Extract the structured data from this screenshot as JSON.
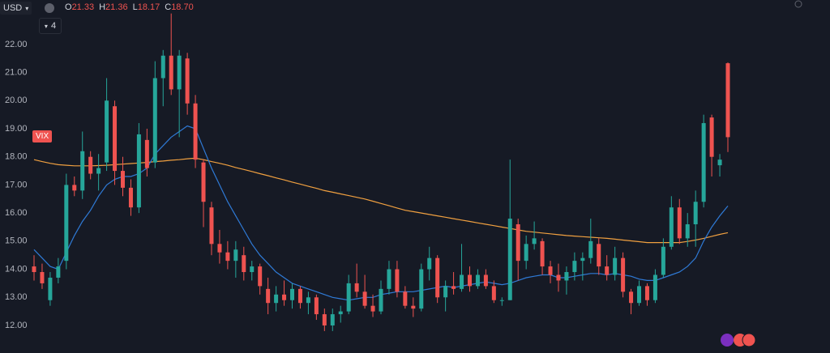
{
  "header": {
    "currency": "USD",
    "ohlc": [
      {
        "key": "O",
        "value": "21.33"
      },
      {
        "key": "H",
        "value": "21.36"
      },
      {
        "key": "L",
        "value": "18.17"
      },
      {
        "key": "C",
        "value": "18.70"
      }
    ],
    "indicator_count": "4",
    "symbol_tag": "VIX"
  },
  "chart_data": {
    "type": "candlestick",
    "up_color": "#26a69a",
    "down_color": "#ef5350",
    "ylim": [
      11.02,
      23.58
    ],
    "yticks": [
      {
        "value": 12,
        "label": "12.00"
      },
      {
        "value": 13,
        "label": "13.00"
      },
      {
        "value": 14,
        "label": "14.00"
      },
      {
        "value": 15,
        "label": "15.00"
      },
      {
        "value": 16,
        "label": "16.00"
      },
      {
        "value": 17,
        "label": "17.00"
      },
      {
        "value": 18,
        "label": "18.00"
      },
      {
        "value": 19,
        "label": "19.00"
      },
      {
        "value": 20,
        "label": "20.00"
      },
      {
        "value": 21,
        "label": "21.00"
      },
      {
        "value": 22,
        "label": "22.00"
      }
    ],
    "grid": false,
    "open": [
      14.1,
      13.9,
      12.9,
      13.7,
      14.3,
      17.0,
      16.8,
      18.0,
      17.4,
      17.8,
      19.8,
      17.5,
      16.9,
      16.2,
      18.6,
      17.8,
      20.8,
      21.6,
      20.4,
      21.5,
      19.9,
      17.8,
      16.2,
      14.9,
      14.6,
      14.3,
      14.5,
      13.9,
      14.1,
      13.3,
      12.8,
      13.1,
      12.9,
      13.3,
      12.8,
      13.0,
      12.4,
      12.0,
      12.4,
      12.5,
      13.5,
      13.2,
      12.7,
      12.5,
      13.3,
      14.0,
      13.2,
      12.7,
      12.6,
      14.0,
      14.4,
      13.0,
      13.4,
      13.3,
      13.8,
      13.4,
      13.8,
      13.4,
      12.9,
      12.9,
      15.6,
      14.3,
      14.9,
      15.0,
      14.1,
      13.8,
      13.6,
      13.9,
      14.3,
      14.4,
      14.9,
      14.1,
      13.8,
      14.4,
      13.2,
      12.8,
      13.4,
      12.9,
      13.8,
      14.8,
      16.2,
      15.1,
      15.6,
      16.4,
      19.4,
      17.7,
      21.33
    ],
    "high": [
      14.5,
      14.2,
      13.9,
      14.4,
      17.4,
      17.3,
      18.9,
      18.2,
      18.1,
      20.8,
      20.0,
      18.0,
      17.2,
      19.2,
      19.0,
      21.4,
      21.8,
      23.1,
      21.8,
      21.7,
      20.2,
      17.9,
      16.4,
      15.4,
      15.0,
      15.0,
      14.8,
      14.3,
      14.2,
      13.7,
      13.4,
      13.6,
      13.5,
      13.4,
      13.2,
      13.1,
      12.6,
      12.6,
      12.7,
      13.8,
      14.2,
      13.8,
      13.1,
      13.6,
      14.3,
      14.3,
      13.4,
      13.0,
      14.2,
      14.8,
      14.5,
      13.6,
      13.9,
      14.9,
      14.1,
      14.0,
      14.0,
      13.6,
      13.0,
      17.9,
      15.8,
      15.2,
      15.7,
      15.1,
      14.3,
      14.2,
      14.1,
      14.6,
      14.6,
      15.8,
      15.1,
      14.5,
      14.8,
      14.6,
      13.3,
      13.6,
      13.5,
      14.0,
      15.1,
      16.6,
      16.5,
      16.0,
      16.8,
      19.5,
      19.5,
      18.1,
      21.36
    ],
    "low": [
      13.6,
      13.3,
      12.7,
      13.5,
      14.0,
      16.6,
      16.5,
      17.2,
      16.8,
      17.5,
      17.0,
      16.6,
      15.9,
      16.0,
      17.3,
      17.6,
      19.8,
      20.2,
      18.7,
      19.5,
      17.6,
      15.5,
      14.5,
      14.2,
      14.0,
      13.7,
      13.6,
      13.6,
      13.1,
      12.4,
      12.5,
      12.7,
      12.6,
      12.6,
      12.4,
      12.2,
      11.8,
      11.8,
      12.1,
      12.4,
      13.0,
      12.6,
      12.3,
      12.4,
      13.1,
      13.0,
      12.6,
      12.3,
      12.5,
      13.6,
      12.8,
      12.5,
      13.1,
      13.2,
      13.2,
      13.3,
      13.3,
      12.8,
      12.7,
      12.9,
      13.6,
      14.0,
      14.7,
      13.8,
      13.5,
      13.2,
      13.1,
      13.6,
      13.6,
      14.2,
      13.8,
      13.6,
      13.6,
      13.0,
      12.4,
      12.7,
      12.7,
      12.8,
      13.7,
      14.7,
      14.9,
      14.8,
      14.8,
      16.2,
      17.3,
      17.3,
      18.17
    ],
    "close": [
      13.9,
      13.5,
      13.7,
      14.1,
      17.0,
      16.8,
      18.2,
      17.4,
      17.6,
      20.0,
      17.5,
      16.9,
      16.2,
      18.8,
      17.6,
      20.8,
      21.6,
      20.4,
      21.6,
      19.9,
      17.9,
      16.4,
      14.9,
      14.6,
      14.3,
      14.7,
      13.9,
      14.1,
      13.4,
      12.8,
      13.1,
      12.9,
      13.3,
      12.8,
      13.0,
      12.4,
      12.0,
      12.4,
      12.5,
      13.5,
      13.2,
      12.7,
      12.5,
      13.3,
      14.0,
      13.2,
      12.7,
      12.6,
      14.0,
      14.4,
      13.0,
      13.4,
      13.3,
      13.8,
      13.4,
      13.8,
      13.4,
      12.9,
      12.9,
      15.8,
      14.3,
      14.9,
      15.1,
      14.1,
      13.8,
      13.6,
      13.9,
      14.3,
      14.4,
      15.0,
      14.1,
      13.8,
      14.4,
      13.2,
      12.8,
      13.4,
      12.9,
      13.8,
      14.8,
      16.2,
      15.1,
      15.6,
      16.4,
      19.2,
      18.0,
      17.9,
      18.7
    ],
    "moving_averages": [
      {
        "color": "#2f7ad6",
        "values": [
          14.7,
          14.4,
          14.1,
          14.0,
          14.6,
          15.2,
          15.7,
          16.1,
          16.6,
          17.0,
          17.2,
          17.3,
          17.3,
          17.4,
          17.6,
          18.1,
          18.4,
          18.7,
          18.9,
          19.1,
          19.0,
          18.3,
          17.6,
          17.0,
          16.4,
          15.9,
          15.4,
          14.9,
          14.5,
          14.2,
          13.9,
          13.7,
          13.5,
          13.4,
          13.3,
          13.2,
          13.1,
          13.0,
          12.95,
          12.9,
          12.95,
          13.0,
          13.0,
          13.1,
          13.15,
          13.2,
          13.2,
          13.2,
          13.25,
          13.3,
          13.35,
          13.4,
          13.35,
          13.4,
          13.45,
          13.5,
          13.55,
          13.5,
          13.45,
          13.5,
          13.6,
          13.7,
          13.75,
          13.8,
          13.8,
          13.7,
          13.7,
          13.75,
          13.8,
          13.85,
          13.85,
          13.8,
          13.85,
          13.8,
          13.75,
          13.65,
          13.6,
          13.6,
          13.7,
          13.8,
          13.9,
          14.1,
          14.4,
          15.0,
          15.5,
          15.9,
          16.25
        ]
      },
      {
        "color": "#f0a040",
        "values": [
          17.9,
          17.83,
          17.77,
          17.72,
          17.7,
          17.68,
          17.68,
          17.68,
          17.69,
          17.7,
          17.72,
          17.74,
          17.76,
          17.78,
          17.8,
          17.83,
          17.85,
          17.88,
          17.9,
          17.93,
          17.95,
          17.9,
          17.83,
          17.77,
          17.7,
          17.62,
          17.55,
          17.48,
          17.4,
          17.33,
          17.25,
          17.18,
          17.1,
          17.03,
          16.95,
          16.88,
          16.8,
          16.74,
          16.68,
          16.62,
          16.56,
          16.5,
          16.42,
          16.34,
          16.26,
          16.18,
          16.1,
          16.05,
          16.0,
          15.95,
          15.9,
          15.85,
          15.8,
          15.75,
          15.7,
          15.65,
          15.6,
          15.55,
          15.5,
          15.45,
          15.4,
          15.35,
          15.32,
          15.29,
          15.26,
          15.23,
          15.2,
          15.18,
          15.16,
          15.14,
          15.12,
          15.1,
          15.07,
          15.04,
          15.01,
          14.98,
          14.95,
          14.95,
          14.95,
          14.95,
          14.95,
          14.99,
          15.04,
          15.1,
          15.17,
          15.24,
          15.3
        ]
      }
    ]
  }
}
